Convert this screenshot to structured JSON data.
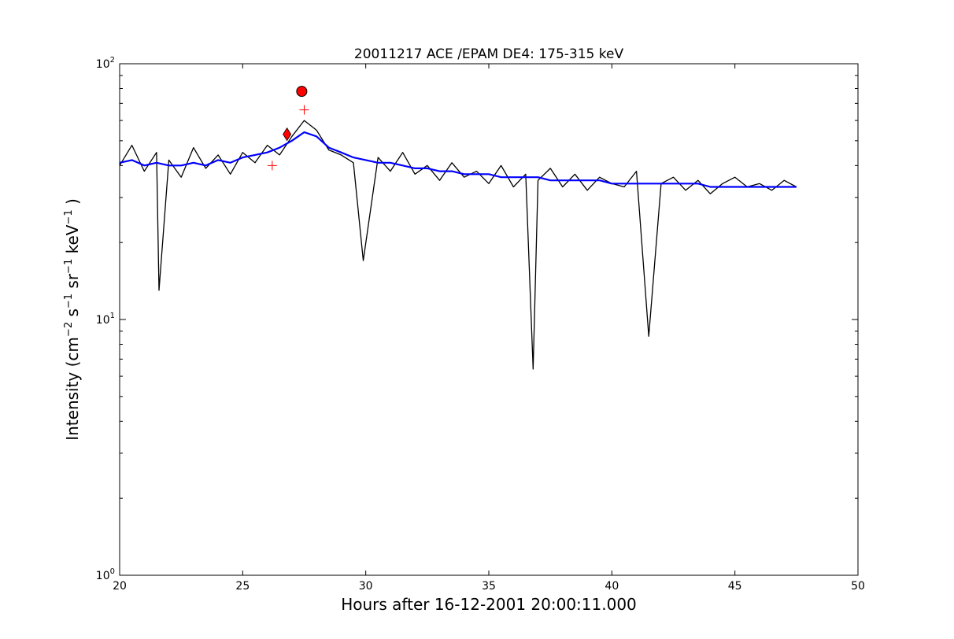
{
  "chart_data": {
    "type": "line",
    "title": "20011217 ACE /EPAM DE4: 175-315 keV",
    "xlabel": "Hours after 16-12-2001 20:00:11.000",
    "ylabel": {
      "prefix": "Intensity (cm",
      "exp1": "−2",
      "mid1": " s",
      "exp2": "−1",
      "mid2": " sr",
      "exp3": "−1",
      "mid3": " keV",
      "exp4": "−1",
      "suffix": " )"
    },
    "xlim": [
      20,
      50
    ],
    "ylim": [
      1,
      100
    ],
    "yscale": "log",
    "xticks": [
      20,
      25,
      30,
      35,
      40,
      45,
      50
    ],
    "xtick_labels": [
      "20",
      "25",
      "30",
      "35",
      "40",
      "45",
      "50"
    ],
    "yticks": [
      1,
      10,
      100
    ],
    "ytick_labels": [
      {
        "base": "10",
        "exp": "0"
      },
      {
        "base": "10",
        "exp": "1"
      },
      {
        "base": "10",
        "exp": "2"
      }
    ],
    "grid": false,
    "series": [
      {
        "color": "#000000",
        "x": [
          20.0,
          20.5,
          21.0,
          21.5,
          21.6,
          22.0,
          22.5,
          23.0,
          23.5,
          24.0,
          24.5,
          25.0,
          25.5,
          26.0,
          26.5,
          27.0,
          27.5,
          28.0,
          28.5,
          29.0,
          29.5,
          29.9,
          30.5,
          31.0,
          31.5,
          32.0,
          32.5,
          33.0,
          33.5,
          34.0,
          34.5,
          35.0,
          35.5,
          36.0,
          36.5,
          36.8,
          37.0,
          37.5,
          38.0,
          38.5,
          39.0,
          39.5,
          40.0,
          40.5,
          41.0,
          41.5,
          42.0,
          42.5,
          43.0,
          43.5,
          44.0,
          44.5,
          45.0,
          45.5,
          46.0,
          46.5,
          47.0,
          47.5
        ],
        "y": [
          40,
          48,
          38,
          45,
          13,
          42,
          36,
          47,
          39,
          44,
          37,
          45,
          41,
          48,
          44,
          52,
          60,
          55,
          46,
          44,
          41,
          17,
          43,
          38,
          45,
          37,
          40,
          35,
          41,
          36,
          38,
          34,
          40,
          33,
          37,
          6.4,
          35,
          39,
          33,
          37,
          32,
          36,
          34,
          33,
          38,
          8.6,
          34,
          36,
          32,
          35,
          31,
          34,
          36,
          33,
          34,
          32,
          35,
          33
        ]
      },
      {
        "color": "#0000ff",
        "x": [
          20.0,
          20.5,
          21.0,
          21.5,
          22.0,
          22.5,
          23.0,
          23.5,
          24.0,
          24.5,
          25.0,
          25.5,
          26.0,
          26.5,
          27.0,
          27.5,
          28.0,
          28.5,
          29.0,
          29.5,
          30.0,
          30.5,
          31.0,
          31.5,
          32.0,
          32.5,
          33.0,
          33.5,
          34.0,
          34.5,
          35.0,
          35.5,
          36.0,
          36.5,
          37.0,
          37.5,
          38.0,
          38.5,
          39.0,
          39.5,
          40.0,
          40.5,
          41.0,
          41.5,
          42.0,
          42.5,
          43.0,
          43.5,
          44.0,
          44.5,
          45.0,
          45.5,
          46.0,
          46.5,
          47.0,
          47.5
        ],
        "y": [
          41,
          42,
          40,
          41,
          40,
          40,
          41,
          40,
          42,
          41,
          43,
          44,
          45,
          47,
          50,
          54,
          52,
          47,
          45,
          43,
          42,
          41,
          41,
          40,
          39,
          39,
          38,
          38,
          37,
          37,
          37,
          36,
          36,
          36,
          36,
          35,
          35,
          35,
          35,
          35,
          34,
          34,
          34,
          34,
          34,
          34,
          34,
          34,
          33,
          33,
          33,
          33,
          33,
          33,
          33,
          33
        ]
      }
    ],
    "markers": [
      {
        "shape": "circle",
        "color": "#ff0000",
        "x": 27.4,
        "y": 78
      },
      {
        "shape": "diamond",
        "color": "#ff0000",
        "x": 26.8,
        "y": 53
      },
      {
        "shape": "plus",
        "color": "#ff0000",
        "x": 26.2,
        "y": 40
      },
      {
        "shape": "plus",
        "color": "#ff0000",
        "x": 27.5,
        "y": 66
      }
    ]
  }
}
